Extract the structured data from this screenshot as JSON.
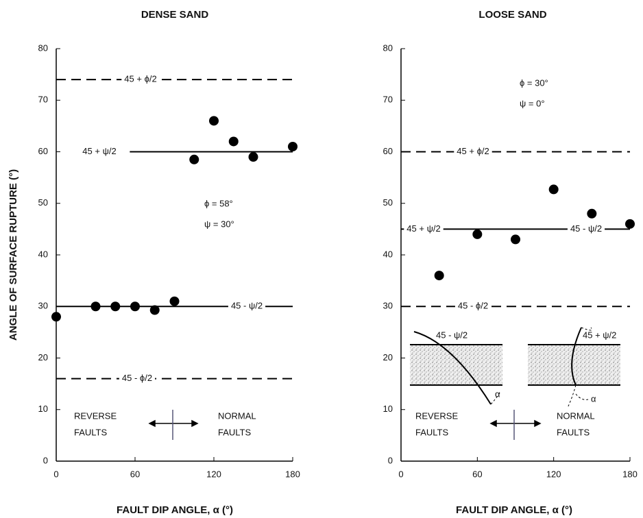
{
  "chart_data": [
    {
      "type": "scatter",
      "title": "DENSE SAND",
      "x_label": "FAULT DIP ANGLE, α (°)",
      "y_label": "ANGLE OF SURFACE RUPTURE (°)",
      "xlim": [
        0,
        180
      ],
      "ylim": [
        0,
        80
      ],
      "xticks": [
        0,
        60,
        120,
        180
      ],
      "yticks": [
        0,
        10,
        20,
        30,
        40,
        50,
        60,
        70,
        80
      ],
      "x": [
        0,
        30,
        45,
        60,
        75,
        90,
        105,
        120,
        135,
        150,
        180
      ],
      "values": [
        28,
        30,
        30,
        30,
        29.3,
        31,
        58.5,
        66,
        62,
        59,
        61
      ],
      "color": "#000000",
      "reference_lines": [
        {
          "value": 74,
          "style": "dashed",
          "x_range": [
            0,
            180
          ],
          "labels": [
            "45 + ϕ/2"
          ]
        },
        {
          "value": 60,
          "style": "solid",
          "x_range": [
            56,
            180
          ],
          "labels": [
            "45 + ψ/2"
          ]
        },
        {
          "value": 30,
          "style": "solid",
          "x_range": [
            0,
            180
          ],
          "labels": [
            "45 - ψ/2"
          ]
        },
        {
          "value": 16,
          "style": "dashed",
          "x_range": [
            0,
            180
          ],
          "labels": [
            "45 - ϕ/2"
          ]
        }
      ],
      "annotations": [
        "ϕ = 58°",
        "ψ = 30°"
      ],
      "regions": [
        [
          "REVERSE",
          "FAULTS"
        ],
        [
          "NORMAL",
          "FAULTS"
        ]
      ]
    },
    {
      "type": "scatter",
      "title": "LOOSE SAND",
      "x_label": "FAULT DIP ANGLE, α (°)",
      "xlim": [
        0,
        180
      ],
      "ylim": [
        0,
        80
      ],
      "xticks": [
        0,
        60,
        120,
        180
      ],
      "yticks": [
        0,
        10,
        20,
        30,
        40,
        50,
        60,
        70,
        80
      ],
      "x": [
        30,
        60,
        90,
        120,
        150,
        180
      ],
      "values": [
        36,
        44,
        43,
        52.7,
        48,
        46
      ],
      "color": "#000000",
      "reference_lines": [
        {
          "value": 60,
          "style": "dashed",
          "x_range": [
            0,
            180
          ],
          "labels": [
            "45 + ϕ/2"
          ]
        },
        {
          "value": 45,
          "style": "solid",
          "x_range": [
            0,
            180
          ],
          "labels": [
            "45 + ψ/2",
            "45 - ψ/2"
          ]
        },
        {
          "value": 30,
          "style": "dashed",
          "x_range": [
            0,
            180
          ],
          "labels": [
            "45 - ϕ/2"
          ]
        }
      ],
      "annotations": [
        "ϕ = 30°",
        "ψ = 0°"
      ],
      "regions": [
        [
          "REVERSE",
          "FAULTS"
        ],
        [
          "NORMAL",
          "FAULTS"
        ]
      ],
      "diagram_labels": [
        "45 - ψ/2",
        "α",
        "45 + ψ/2",
        "α"
      ]
    }
  ]
}
